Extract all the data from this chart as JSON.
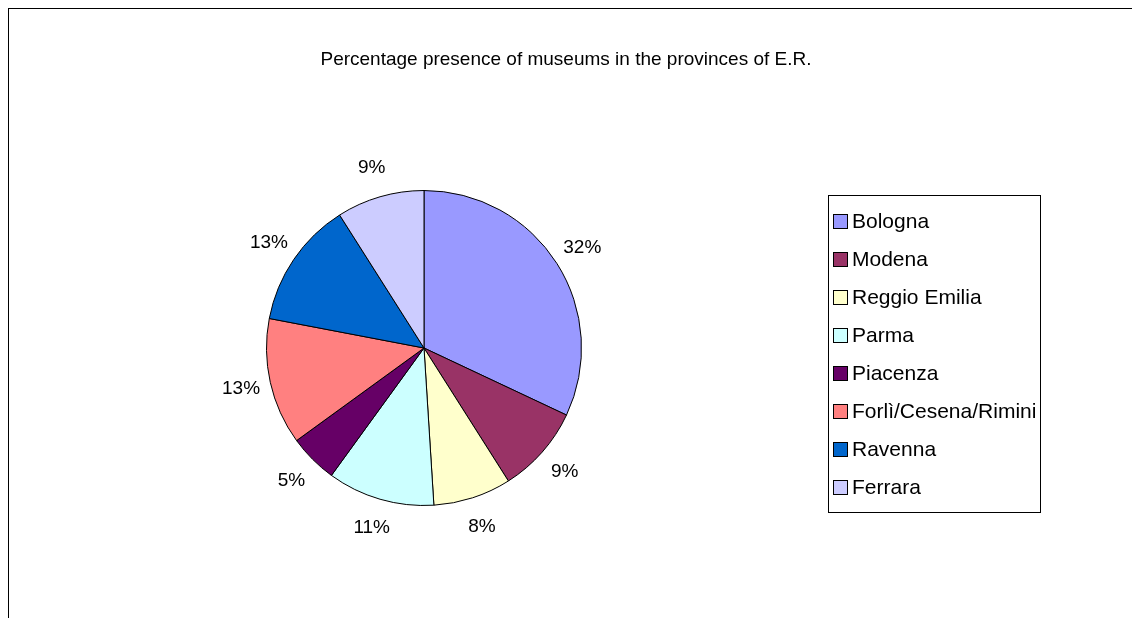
{
  "chart_data": {
    "type": "pie",
    "title": "Percentage presence of museums in the provinces of E.R.",
    "categories": [
      "Bologna",
      "Modena",
      "Reggio Emilia",
      "Parma",
      "Piacenza",
      "Forlì/Cesena/Rimini",
      "Ravenna",
      "Ferrara"
    ],
    "values": [
      32,
      9,
      8,
      11,
      5,
      13,
      13,
      9
    ],
    "colors": [
      "#9999ff",
      "#993366",
      "#ffffcc",
      "#ccffff",
      "#660066",
      "#ff8080",
      "#0066cc",
      "#ccccff"
    ],
    "value_labels": [
      "32%",
      "9%",
      "8%",
      "11%",
      "5%",
      "13%",
      "13%",
      "9%"
    ],
    "legend": "right"
  }
}
